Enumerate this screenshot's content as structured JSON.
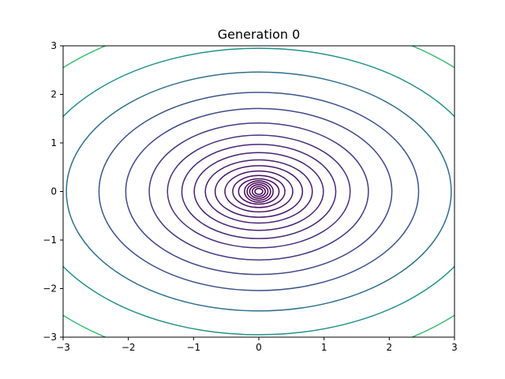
{
  "chart_data": {
    "type": "contour",
    "title": "Generation 0",
    "xlabel": "",
    "ylabel": "",
    "xlim": [
      -3,
      3
    ],
    "ylim": [
      -3,
      3
    ],
    "x_ticks": [
      -3,
      -2,
      -1,
      0,
      1,
      2,
      3
    ],
    "y_ticks": [
      -3,
      -2,
      -1,
      0,
      1,
      2,
      3
    ],
    "x_tick_labels": [
      "−3",
      "−2",
      "−1",
      "0",
      "1",
      "2",
      "3"
    ],
    "y_tick_labels": [
      "−3",
      "−2",
      "−1",
      "0",
      "1",
      "2",
      "3"
    ],
    "grid": false,
    "center": [
      0,
      0
    ],
    "contours": [
      {
        "rx": 0.06,
        "ry": 0.06,
        "color": "#440154"
      },
      {
        "rx": 0.1,
        "ry": 0.1,
        "color": "#440154"
      },
      {
        "rx": 0.14,
        "ry": 0.14,
        "color": "#440154"
      },
      {
        "rx": 0.18,
        "ry": 0.18,
        "color": "#440154"
      },
      {
        "rx": 0.22,
        "ry": 0.22,
        "color": "#45065a"
      },
      {
        "rx": 0.31,
        "ry": 0.26,
        "color": "#460b5e"
      },
      {
        "rx": 0.4,
        "ry": 0.33,
        "color": "#471063"
      },
      {
        "rx": 0.52,
        "ry": 0.42,
        "color": "#471365"
      },
      {
        "rx": 0.67,
        "ry": 0.53,
        "color": "#481769"
      },
      {
        "rx": 0.82,
        "ry": 0.65,
        "color": "#481b6d"
      },
      {
        "rx": 0.99,
        "ry": 0.8,
        "color": "#472172"
      },
      {
        "rx": 1.18,
        "ry": 0.97,
        "color": "#472878"
      },
      {
        "rx": 1.4,
        "ry": 1.16,
        "color": "#46307e"
      },
      {
        "rx": 1.68,
        "ry": 1.41,
        "color": "#433b84"
      },
      {
        "rx": 2.04,
        "ry": 1.71,
        "color": "#3f4889"
      },
      {
        "rx": 2.45,
        "ry": 2.04,
        "color": "#3a548c"
      },
      {
        "rx": 2.95,
        "ry": 2.46,
        "color": "#2e6f8e"
      },
      {
        "rx": 3.52,
        "ry": 2.95,
        "color": "#21918c"
      },
      {
        "rx": 4.25,
        "ry": 3.6,
        "color": "#3dbc74"
      }
    ]
  }
}
